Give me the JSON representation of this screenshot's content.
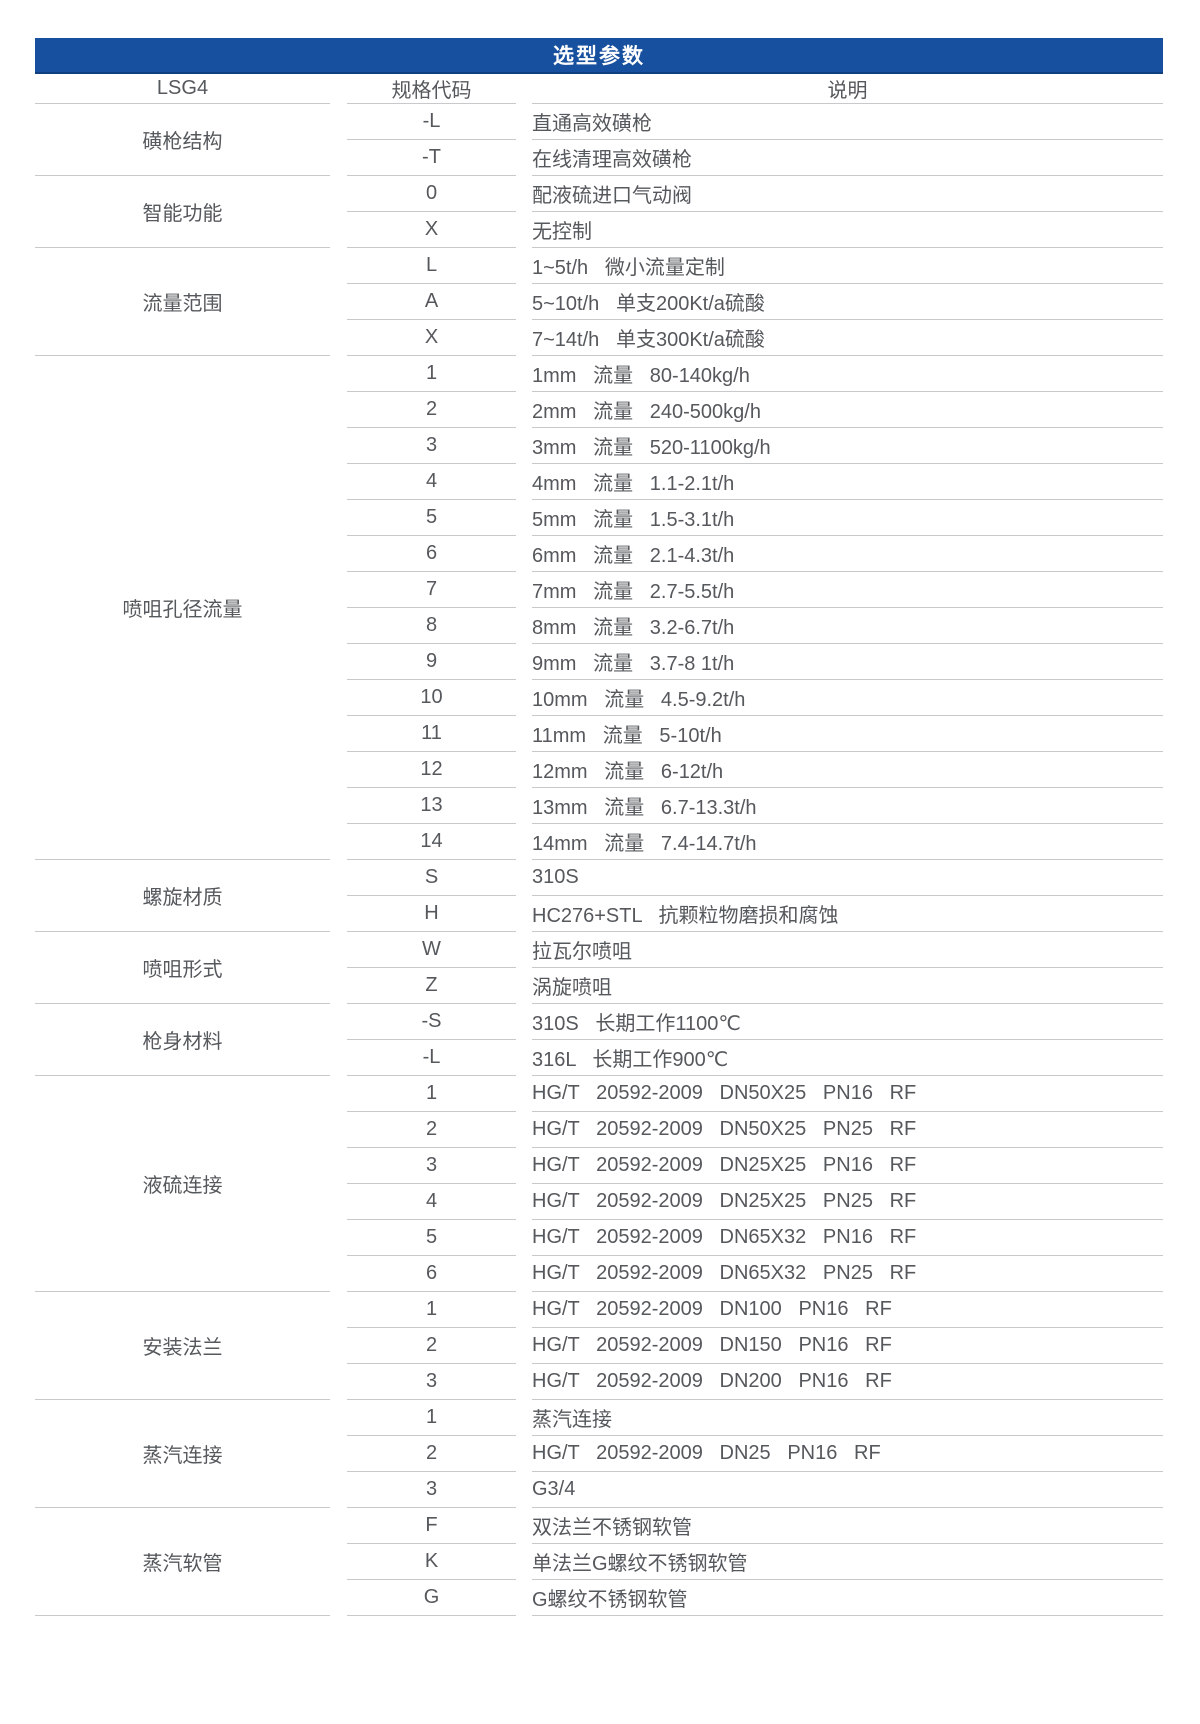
{
  "banner": {
    "title": "选型参数"
  },
  "columns": {
    "model": "LSG4",
    "code": "规格代码",
    "description": "说明"
  },
  "colors": {
    "banner_bg": "#17509E",
    "banner_text": "#FFFFFF",
    "banner_edge": "#0F3F7F",
    "header_text": "#3B3E42",
    "body_text": "#55585C",
    "divider": "#C7C9CB"
  },
  "groups": [
    {
      "category": "磺枪结构",
      "rows": [
        {
          "code": "-L",
          "desc": "直通高效磺枪"
        },
        {
          "code": "-T",
          "desc": "在线清理高效磺枪"
        }
      ]
    },
    {
      "category": "智能功能",
      "rows": [
        {
          "code": "0",
          "desc": "配液硫进口气动阀"
        },
        {
          "code": "X",
          "desc": "无控制"
        }
      ]
    },
    {
      "category": "流量范围",
      "rows": [
        {
          "code": "L",
          "desc": "1~5t/h   微小流量定制"
        },
        {
          "code": "A",
          "desc": "5~10t/h   单支200Kt/a硫酸"
        },
        {
          "code": "X",
          "desc": "7~14t/h   单支300Kt/a硫酸"
        }
      ]
    },
    {
      "category": "喷咀孔径流量",
      "rows": [
        {
          "code": "1",
          "desc": "1mm   流量   80-140kg/h"
        },
        {
          "code": "2",
          "desc": "2mm   流量   240-500kg/h"
        },
        {
          "code": "3",
          "desc": "3mm   流量   520-1100kg/h"
        },
        {
          "code": "4",
          "desc": "4mm   流量   1.1-2.1t/h"
        },
        {
          "code": "5",
          "desc": "5mm   流量   1.5-3.1t/h"
        },
        {
          "code": "6",
          "desc": "6mm   流量   2.1-4.3t/h"
        },
        {
          "code": "7",
          "desc": "7mm   流量   2.7-5.5t/h"
        },
        {
          "code": "8",
          "desc": "8mm   流量   3.2-6.7t/h"
        },
        {
          "code": "9",
          "desc": "9mm   流量   3.7-8 1t/h"
        },
        {
          "code": "10",
          "desc": "10mm   流量   4.5-9.2t/h"
        },
        {
          "code": "11",
          "desc": "11mm   流量   5-10t/h"
        },
        {
          "code": "12",
          "desc": "12mm   流量   6-12t/h"
        },
        {
          "code": "13",
          "desc": "13mm   流量   6.7-13.3t/h"
        },
        {
          "code": "14",
          "desc": "14mm   流量   7.4-14.7t/h"
        }
      ]
    },
    {
      "category": "螺旋材质",
      "rows": [
        {
          "code": "S",
          "desc": "310S"
        },
        {
          "code": "H",
          "desc": "HC276+STL   抗颗粒物磨损和腐蚀"
        }
      ]
    },
    {
      "category": "喷咀形式",
      "rows": [
        {
          "code": "W",
          "desc": "拉瓦尔喷咀"
        },
        {
          "code": "Z",
          "desc": "涡旋喷咀"
        }
      ]
    },
    {
      "category": "枪身材料",
      "rows": [
        {
          "code": "-S",
          "desc": "310S   长期工作1100℃"
        },
        {
          "code": "-L",
          "desc": "316L   长期工作900℃"
        }
      ]
    },
    {
      "category": "液硫连接",
      "rows": [
        {
          "code": "1",
          "desc": "HG/T   20592-2009   DN50X25   PN16   RF"
        },
        {
          "code": "2",
          "desc": "HG/T   20592-2009   DN50X25   PN25   RF"
        },
        {
          "code": "3",
          "desc": "HG/T   20592-2009   DN25X25   PN16   RF"
        },
        {
          "code": "4",
          "desc": "HG/T   20592-2009   DN25X25   PN25   RF"
        },
        {
          "code": "5",
          "desc": "HG/T   20592-2009   DN65X32   PN16   RF"
        },
        {
          "code": "6",
          "desc": "HG/T   20592-2009   DN65X32   PN25   RF"
        }
      ]
    },
    {
      "category": "安装法兰",
      "rows": [
        {
          "code": "1",
          "desc": "HG/T   20592-2009   DN100   PN16   RF"
        },
        {
          "code": "2",
          "desc": "HG/T   20592-2009   DN150   PN16   RF"
        },
        {
          "code": "3",
          "desc": "HG/T   20592-2009   DN200   PN16   RF"
        }
      ]
    },
    {
      "category": "蒸汽连接",
      "rows": [
        {
          "code": "1",
          "desc": "蒸汽连接"
        },
        {
          "code": "2",
          "desc": "HG/T   20592-2009   DN25   PN16   RF"
        },
        {
          "code": "3",
          "desc": "G3/4"
        }
      ]
    },
    {
      "category": "蒸汽软管",
      "rows": [
        {
          "code": "F",
          "desc": "双法兰不锈钢软管"
        },
        {
          "code": "K",
          "desc": "单法兰G螺纹不锈钢软管"
        },
        {
          "code": "G",
          "desc": "G螺纹不锈钢软管"
        }
      ]
    }
  ]
}
